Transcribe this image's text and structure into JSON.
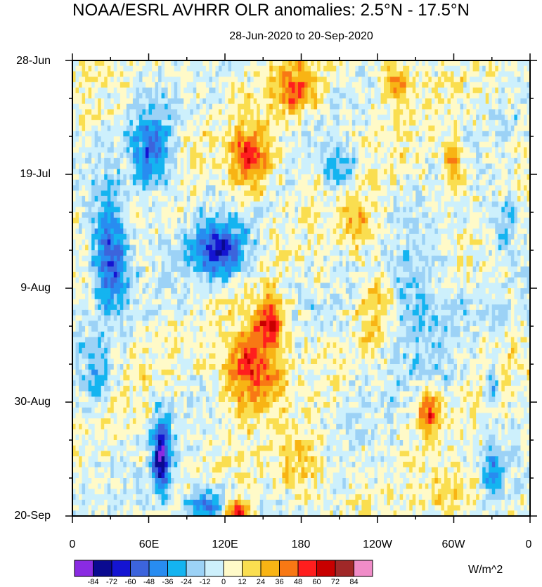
{
  "chart_data": {
    "type": "heatmap",
    "title": "NOAA/ESRL AVHRR OLR anomalies: 2.5°N - 17.5°N",
    "subtitle": "28-Jun-2020 to 20-Sep-2020",
    "x_tick_labels": [
      "0",
      "60E",
      "120E",
      "180",
      "120W",
      "60W",
      "0"
    ],
    "y_tick_labels": [
      "28-Jun",
      "19-Jul",
      "9-Aug",
      "30-Aug",
      "20-Sep"
    ],
    "x_range_deg": [
      0,
      360
    ],
    "y_range_days": [
      0,
      84
    ],
    "colorbar": {
      "units": "W/m^2",
      "levels": [
        -84,
        -72,
        -60,
        -48,
        -36,
        -24,
        -12,
        0,
        12,
        24,
        36,
        48,
        60,
        72,
        84
      ],
      "colors": [
        "#8a2be2",
        "#0a0a90",
        "#1414d2",
        "#3c64dc",
        "#288cf0",
        "#14b4f0",
        "#9cd2f6",
        "#cdf0fc",
        "#fffac8",
        "#fade50",
        "#f8b414",
        "#f87814",
        "#ff1e1e",
        "#c80000",
        "#a02828",
        "#f08cc8"
      ]
    },
    "anomaly_features": [
      {
        "lon": 30,
        "day": 35,
        "value": -60,
        "spread_lon": 14,
        "spread_day": 10
      },
      {
        "lon": 62,
        "day": 17,
        "value": -50,
        "spread_lon": 16,
        "spread_day": 7
      },
      {
        "lon": 115,
        "day": 35,
        "value": -65,
        "spread_lon": 22,
        "spread_day": 5
      },
      {
        "lon": 70,
        "day": 73,
        "value": -75,
        "spread_lon": 7,
        "spread_day": 7
      },
      {
        "lon": 105,
        "day": 82,
        "value": -55,
        "spread_lon": 16,
        "spread_day": 3
      },
      {
        "lon": 210,
        "day": 20,
        "value": -35,
        "spread_lon": 12,
        "spread_day": 4
      },
      {
        "lon": 270,
        "day": 45,
        "value": -25,
        "spread_lon": 30,
        "spread_day": 12
      },
      {
        "lon": 330,
        "day": 58,
        "value": -40,
        "spread_lon": 6,
        "spread_day": 6
      },
      {
        "lon": 330,
        "day": 75,
        "value": -35,
        "spread_lon": 8,
        "spread_day": 5
      },
      {
        "lon": 20,
        "day": 58,
        "value": -30,
        "spread_lon": 10,
        "spread_day": 7
      },
      {
        "lon": 340,
        "day": 30,
        "value": -30,
        "spread_lon": 10,
        "spread_day": 5
      },
      {
        "lon": 140,
        "day": 18,
        "value": 55,
        "spread_lon": 16,
        "spread_day": 6
      },
      {
        "lon": 175,
        "day": 5,
        "value": 40,
        "spread_lon": 20,
        "spread_day": 5
      },
      {
        "lon": 255,
        "day": 4,
        "value": 35,
        "spread_lon": 14,
        "spread_day": 4
      },
      {
        "lon": 140,
        "day": 57,
        "value": 60,
        "spread_lon": 22,
        "spread_day": 7
      },
      {
        "lon": 155,
        "day": 48,
        "value": 55,
        "spread_lon": 12,
        "spread_day": 5
      },
      {
        "lon": 130,
        "day": 83,
        "value": 60,
        "spread_lon": 10,
        "spread_day": 2
      },
      {
        "lon": 280,
        "day": 65,
        "value": 50,
        "spread_lon": 10,
        "spread_day": 4
      },
      {
        "lon": 240,
        "day": 45,
        "value": 30,
        "spread_lon": 14,
        "spread_day": 6
      },
      {
        "lon": 300,
        "day": 20,
        "value": 40,
        "spread_lon": 8,
        "spread_day": 5
      },
      {
        "lon": 225,
        "day": 30,
        "value": 25,
        "spread_lon": 18,
        "spread_day": 6
      },
      {
        "lon": 300,
        "day": 80,
        "value": 25,
        "spread_lon": 20,
        "spread_day": 4
      },
      {
        "lon": 180,
        "day": 75,
        "value": 30,
        "spread_lon": 18,
        "spread_day": 5
      },
      {
        "lon": 330,
        "day": 55,
        "value": 30,
        "spread_lon": 10,
        "spread_day": 4
      }
    ]
  }
}
